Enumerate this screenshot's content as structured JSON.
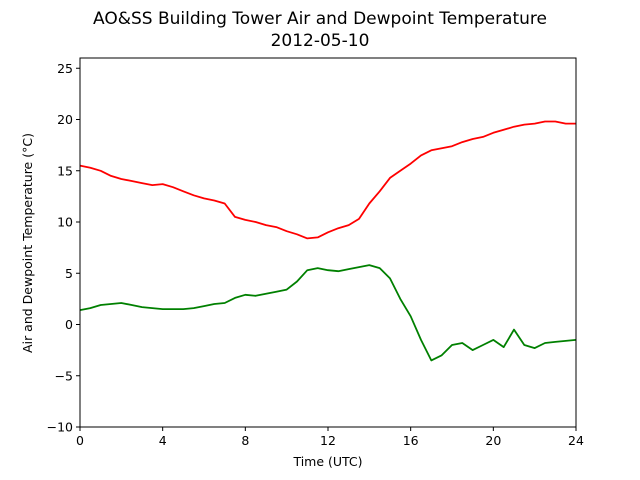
{
  "chart_data": {
    "type": "line",
    "title": "AO&SS Building Tower Air and Dewpoint Temperature",
    "subtitle": "2012-05-10",
    "xlabel": "Time (UTC)",
    "ylabel": "Air and Dewpoint Temperature (°C)",
    "xlim": [
      0,
      24
    ],
    "ylim": [
      -10,
      26
    ],
    "xticks": [
      0,
      4,
      8,
      12,
      16,
      20,
      24
    ],
    "yticks": [
      -10,
      -5,
      0,
      5,
      10,
      15,
      20,
      25
    ],
    "grid": false,
    "series": [
      {
        "color": "#ff0000",
        "x": [
          0,
          0.5,
          1,
          1.5,
          2,
          2.5,
          3,
          3.5,
          4,
          4.5,
          5,
          5.5,
          6,
          6.5,
          7,
          7.5,
          8,
          8.5,
          9,
          9.5,
          10,
          10.5,
          11,
          11.5,
          12,
          12.5,
          13,
          13.5,
          14,
          14.5,
          15,
          15.5,
          16,
          16.5,
          17,
          17.5,
          18,
          18.5,
          19,
          19.5,
          20,
          20.5,
          21,
          21.5,
          22,
          22.5,
          23,
          23.5,
          24
        ],
        "y": [
          15.5,
          15.3,
          15.0,
          14.5,
          14.2,
          14.0,
          13.8,
          13.6,
          13.7,
          13.4,
          13.0,
          12.6,
          12.3,
          12.1,
          11.8,
          10.5,
          10.2,
          10.0,
          9.7,
          9.5,
          9.1,
          8.8,
          8.4,
          8.5,
          9.0,
          9.4,
          9.7,
          10.3,
          11.8,
          13.0,
          14.3,
          15.0,
          15.7,
          16.5,
          17.0,
          17.2,
          17.4,
          17.8,
          18.1,
          18.3,
          18.7,
          19.0,
          19.3,
          19.5,
          19.6,
          19.8,
          19.8,
          19.6,
          19.6
        ]
      },
      {
        "color": "#008000",
        "x": [
          0,
          0.5,
          1,
          1.5,
          2,
          2.5,
          3,
          3.5,
          4,
          4.5,
          5,
          5.5,
          6,
          6.5,
          7,
          7.5,
          8,
          8.5,
          9,
          9.5,
          10,
          10.5,
          11,
          11.5,
          12,
          12.5,
          13,
          13.5,
          14,
          14.5,
          15,
          15.5,
          16,
          16.5,
          17,
          17.5,
          18,
          18.5,
          19,
          19.5,
          20,
          20.5,
          21,
          21.5,
          22,
          22.5,
          23,
          23.5,
          24
        ],
        "y": [
          1.4,
          1.6,
          1.9,
          2.0,
          2.1,
          1.9,
          1.7,
          1.6,
          1.5,
          1.5,
          1.5,
          1.6,
          1.8,
          2.0,
          2.1,
          2.6,
          2.9,
          2.8,
          3.0,
          3.2,
          3.4,
          4.2,
          5.3,
          5.5,
          5.3,
          5.2,
          5.4,
          5.6,
          5.8,
          5.5,
          4.5,
          2.5,
          0.8,
          -1.5,
          -3.5,
          -3.0,
          -2.0,
          -1.8,
          -2.5,
          -2.0,
          -1.5,
          -2.2,
          -0.5,
          -2.0,
          -2.3,
          -1.8,
          -1.7,
          -1.6,
          -1.5
        ]
      }
    ]
  }
}
